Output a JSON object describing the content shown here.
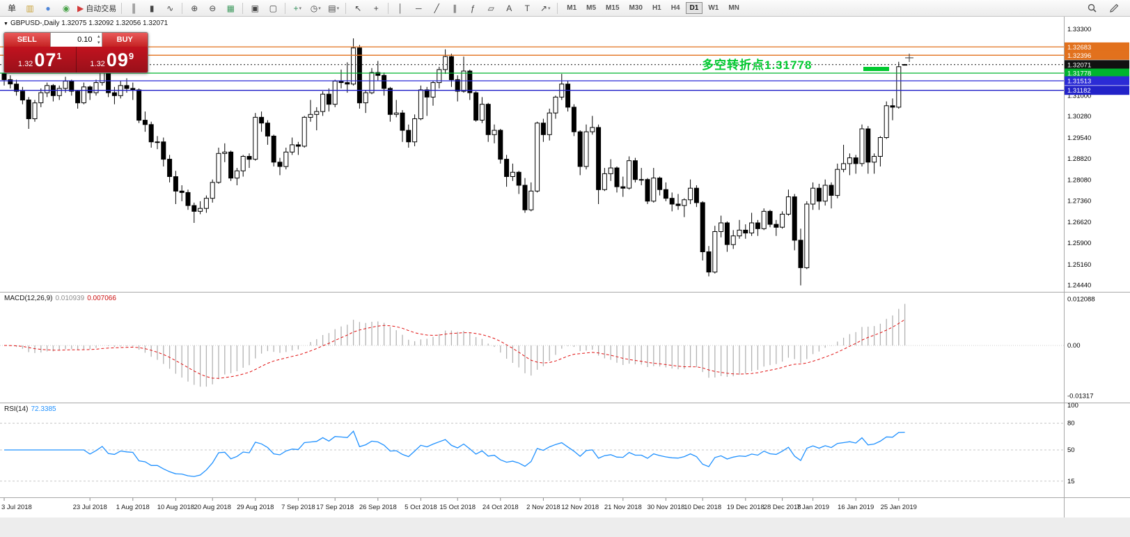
{
  "toolbar": {
    "groups": [
      {
        "name": "trade",
        "items": [
          {
            "n": "new-order-button",
            "g": "单",
            "c": "#333333"
          },
          {
            "n": "new-chart-button",
            "g": "▥",
            "c": "#c8a23a"
          },
          {
            "n": "profiles-button",
            "g": "●",
            "c": "#4f86d8"
          },
          {
            "n": "data-window-button",
            "g": "◉",
            "c": "#4aa34a"
          },
          {
            "n": "auto-trading-button",
            "g": "▶",
            "c": "#d33a3a",
            "label": "自动交易"
          }
        ]
      },
      {
        "name": "chart-type",
        "items": [
          {
            "n": "bar-chart-button",
            "g": "║"
          },
          {
            "n": "candlestick-chart-button",
            "g": "▮"
          },
          {
            "n": "line-chart-button",
            "g": "∿"
          }
        ]
      },
      {
        "name": "zoom",
        "items": [
          {
            "n": "zoom-in-button",
            "g": "⊕"
          },
          {
            "n": "zoom-out-button",
            "g": "⊖"
          },
          {
            "n": "grid-button",
            "g": "▦",
            "c": "#3f9a5f"
          }
        ]
      },
      {
        "name": "windows",
        "items": [
          {
            "n": "tile-windows-button",
            "g": "▣"
          },
          {
            "n": "new-window-button",
            "g": "▢"
          }
        ]
      },
      {
        "name": "insert",
        "items": [
          {
            "n": "add-indicator-button",
            "g": "+",
            "c": "#2e8b57",
            "dd": true
          },
          {
            "n": "period-button",
            "g": "◷",
            "dd": true
          },
          {
            "n": "template-button",
            "g": "▤",
            "dd": true
          }
        ]
      },
      {
        "name": "cursor",
        "items": [
          {
            "n": "cursor-button",
            "g": "↖"
          },
          {
            "n": "crosshair-button",
            "g": "+"
          }
        ]
      },
      {
        "name": "draw",
        "items": [
          {
            "n": "vertical-line-button",
            "g": "│"
          },
          {
            "n": "horizontal-line-button",
            "g": "─"
          },
          {
            "n": "trendline-button",
            "g": "╱"
          },
          {
            "n": "channel-button",
            "g": "∥"
          },
          {
            "n": "fibonacci-button",
            "g": "ƒ"
          },
          {
            "n": "shapes-button",
            "g": "▱"
          },
          {
            "n": "text-button",
            "g": "A"
          },
          {
            "n": "text-label-button",
            "g": "T"
          },
          {
            "n": "arrows-button",
            "g": "↗",
            "dd": true
          }
        ]
      }
    ],
    "timeframes": [
      "M1",
      "M5",
      "M15",
      "M30",
      "H1",
      "H4",
      "D1",
      "W1",
      "MN"
    ],
    "active_timeframe": "D1"
  },
  "one_click": {
    "sell_label": "SELL",
    "buy_label": "BUY",
    "volume": "0.10",
    "sell_price_prefix": "1.32",
    "sell_price_big": "07",
    "sell_price_sup": "1",
    "buy_price_prefix": "1.32",
    "buy_price_big": "09",
    "buy_price_sup": "9"
  },
  "chart": {
    "header": "GBPUSD-,Daily 1.32075 1.32092 1.32056 1.32071",
    "annotation": {
      "text": "多空转折点1.31778",
      "color": "#00c92f"
    },
    "levels": [
      {
        "name": "resistance-1",
        "label": "1.32683",
        "value": 1.32683,
        "color": "#e2711d",
        "style": "solid"
      },
      {
        "name": "resistance-2",
        "label": "1.32396",
        "value": 1.32396,
        "color": "#e2711d",
        "style": "solid"
      },
      {
        "name": "bid-price",
        "label": "1.32071",
        "value": 1.32071,
        "color": "#111111",
        "style": "dotted"
      },
      {
        "name": "pivot-1.31778",
        "label": "1.31778",
        "value": 1.31778,
        "color": "#00b42f",
        "style": "solid"
      },
      {
        "name": "support-1",
        "label": "1.31513",
        "value": 1.31513,
        "color": "#2b2bd6",
        "style": "solid"
      },
      {
        "name": "support-2",
        "label": "1.31182",
        "value": 1.31182,
        "color": "#2222c8",
        "style": "solid"
      }
    ],
    "price_axis": [
      {
        "t": "1.33300",
        "v": 1.333
      },
      {
        "t": "1.31000",
        "v": 1.31
      },
      {
        "t": "1.30280",
        "v": 1.3028
      },
      {
        "t": "1.29540",
        "v": 1.2954
      },
      {
        "t": "1.28820",
        "v": 1.2882
      },
      {
        "t": "1.28080",
        "v": 1.2808
      },
      {
        "t": "1.27360",
        "v": 1.2736
      },
      {
        "t": "1.26620",
        "v": 1.2662
      },
      {
        "t": "1.25900",
        "v": 1.259
      },
      {
        "t": "1.25160",
        "v": 1.2516
      },
      {
        "t": "1.24440",
        "v": 1.2444
      }
    ]
  },
  "macd": {
    "label": "MACD(12,26,9)",
    "main_value": "0.010939",
    "signal_value": "0.007066",
    "params": {
      "fast": 12,
      "slow": 26,
      "signal": 9
    },
    "colors": {
      "histogram": "#b2b2b2",
      "signal": "#e01010"
    },
    "axis": [
      {
        "t": "0.012088",
        "v": 0.012088
      },
      {
        "t": "0.00",
        "v": 0
      },
      {
        "t": "-0.01317",
        "v": -0.01317
      }
    ]
  },
  "rsi": {
    "label": "RSI(14)",
    "value": "72.3385",
    "period": 14,
    "color": "#1e90ff",
    "axis": [
      {
        "t": "100",
        "v": 100
      },
      {
        "t": "80",
        "v": 80
      },
      {
        "t": "50",
        "v": 50
      },
      {
        "t": "15",
        "v": 15
      }
    ],
    "levels": [
      80,
      50,
      15
    ]
  },
  "chart_data": {
    "type": "candlestick",
    "symbol": "GBPUSD",
    "timeframe": "Daily",
    "price_range": [
      1.2424,
      1.3368
    ],
    "ohlc": [
      [
        1.3175,
        1.318,
        1.3135,
        1.3155
      ],
      [
        1.3155,
        1.317,
        1.3125,
        1.314
      ],
      [
        1.314,
        1.3155,
        1.31,
        1.3115
      ],
      [
        1.3115,
        1.313,
        1.307,
        1.3085
      ],
      [
        1.3085,
        1.3095,
        1.2985,
        1.302
      ],
      [
        1.302,
        1.3085,
        1.301,
        1.3075
      ],
      [
        1.3075,
        1.3125,
        1.306,
        1.311
      ],
      [
        1.311,
        1.3145,
        1.3095,
        1.3135
      ],
      [
        1.3135,
        1.314,
        1.308,
        1.31
      ],
      [
        1.31,
        1.3135,
        1.3085,
        1.3125
      ],
      [
        1.3125,
        1.3165,
        1.311,
        1.315
      ],
      [
        1.315,
        1.3155,
        1.31,
        1.3115
      ],
      [
        1.3115,
        1.312,
        1.3055,
        1.3075
      ],
      [
        1.3075,
        1.3145,
        1.307,
        1.313
      ],
      [
        1.313,
        1.3135,
        1.3085,
        1.311
      ],
      [
        1.311,
        1.3155,
        1.31,
        1.3145
      ],
      [
        1.3145,
        1.3215,
        1.3135,
        1.319
      ],
      [
        1.319,
        1.3195,
        1.3095,
        1.311
      ],
      [
        1.311,
        1.313,
        1.307,
        1.31
      ],
      [
        1.31,
        1.315,
        1.309,
        1.3135
      ],
      [
        1.3135,
        1.316,
        1.311,
        1.3125
      ],
      [
        1.3125,
        1.3145,
        1.3085,
        1.312
      ],
      [
        1.312,
        1.3125,
        1.3005,
        1.3015
      ],
      [
        1.3015,
        1.3045,
        1.2975,
        1.3
      ],
      [
        1.3,
        1.301,
        1.292,
        1.294
      ],
      [
        1.294,
        1.296,
        1.2915,
        1.294
      ],
      [
        1.294,
        1.2955,
        1.2855,
        1.288
      ],
      [
        1.288,
        1.2895,
        1.28,
        1.282
      ],
      [
        1.282,
        1.284,
        1.2725,
        1.277
      ],
      [
        1.277,
        1.279,
        1.2735,
        1.2765
      ],
      [
        1.2765,
        1.2775,
        1.2705,
        1.272
      ],
      [
        1.272,
        1.273,
        1.266,
        1.27
      ],
      [
        1.27,
        1.2735,
        1.269,
        1.271
      ],
      [
        1.271,
        1.2755,
        1.2695,
        1.2745
      ],
      [
        1.2745,
        1.281,
        1.273,
        1.28
      ],
      [
        1.28,
        1.292,
        1.2795,
        1.29
      ],
      [
        1.29,
        1.2935,
        1.287,
        1.2905
      ],
      [
        1.2905,
        1.291,
        1.2805,
        1.2815
      ],
      [
        1.2815,
        1.285,
        1.279,
        1.284
      ],
      [
        1.284,
        1.2895,
        1.282,
        1.289
      ],
      [
        1.289,
        1.29,
        1.285,
        1.288
      ],
      [
        1.288,
        1.304,
        1.2875,
        1.3025
      ],
      [
        1.3025,
        1.3045,
        1.2975,
        1.3005
      ],
      [
        1.3005,
        1.3015,
        1.293,
        1.296
      ],
      [
        1.296,
        1.2965,
        1.2855,
        1.287
      ],
      [
        1.287,
        1.2885,
        1.2825,
        1.2855
      ],
      [
        1.2855,
        1.292,
        1.2845,
        1.2905
      ],
      [
        1.2905,
        1.2955,
        1.2895,
        1.293
      ],
      [
        1.293,
        1.294,
        1.2895,
        1.2925
      ],
      [
        1.2925,
        1.303,
        1.292,
        1.3025
      ],
      [
        1.3025,
        1.3085,
        1.301,
        1.3035
      ],
      [
        1.3035,
        1.306,
        1.298,
        1.3045
      ],
      [
        1.3045,
        1.3115,
        1.303,
        1.3105
      ],
      [
        1.3105,
        1.3125,
        1.3045,
        1.307
      ],
      [
        1.307,
        1.3155,
        1.306,
        1.315
      ],
      [
        1.315,
        1.319,
        1.3125,
        1.3145
      ],
      [
        1.3145,
        1.3215,
        1.311,
        1.314
      ],
      [
        1.314,
        1.3298,
        1.3135,
        1.3265
      ],
      [
        1.3265,
        1.3275,
        1.3055,
        1.3075
      ],
      [
        1.3075,
        1.312,
        1.304,
        1.311
      ],
      [
        1.311,
        1.3195,
        1.3105,
        1.318
      ],
      [
        1.318,
        1.322,
        1.315,
        1.317
      ],
      [
        1.317,
        1.318,
        1.31,
        1.3125
      ],
      [
        1.3125,
        1.313,
        1.301,
        1.3035
      ],
      [
        1.3035,
        1.3085,
        1.3025,
        1.304
      ],
      [
        1.304,
        1.305,
        1.294,
        1.298
      ],
      [
        1.298,
        1.3,
        1.292,
        1.294
      ],
      [
        1.294,
        1.3035,
        1.2925,
        1.302
      ],
      [
        1.302,
        1.3135,
        1.3015,
        1.312
      ],
      [
        1.312,
        1.313,
        1.303,
        1.3095
      ],
      [
        1.3095,
        1.315,
        1.3065,
        1.3145
      ],
      [
        1.3145,
        1.32,
        1.3125,
        1.319
      ],
      [
        1.319,
        1.326,
        1.3175,
        1.3235
      ],
      [
        1.3235,
        1.3245,
        1.313,
        1.3155
      ],
      [
        1.3155,
        1.317,
        1.308,
        1.3115
      ],
      [
        1.3115,
        1.3235,
        1.311,
        1.3185
      ],
      [
        1.3185,
        1.319,
        1.3085,
        1.311
      ],
      [
        1.311,
        1.3115,
        1.301,
        1.3015
      ],
      [
        1.3015,
        1.3095,
        1.3005,
        1.307
      ],
      [
        1.307,
        1.3075,
        1.294,
        1.2965
      ],
      [
        1.2965,
        1.3,
        1.2935,
        1.298
      ],
      [
        1.298,
        1.2985,
        1.2865,
        1.288
      ],
      [
        1.288,
        1.2895,
        1.2785,
        1.282
      ],
      [
        1.282,
        1.2865,
        1.2805,
        1.2835
      ],
      [
        1.2835,
        1.284,
        1.276,
        1.279
      ],
      [
        1.279,
        1.2815,
        1.2695,
        1.2705
      ],
      [
        1.2705,
        1.28,
        1.27,
        1.277
      ],
      [
        1.277,
        1.301,
        1.2765,
        1.3005
      ],
      [
        1.3005,
        1.302,
        1.294,
        1.2965
      ],
      [
        1.2965,
        1.3055,
        1.2945,
        1.304
      ],
      [
        1.304,
        1.31,
        1.302,
        1.3095
      ],
      [
        1.3095,
        1.3175,
        1.3085,
        1.314
      ],
      [
        1.314,
        1.315,
        1.3045,
        1.306
      ],
      [
        1.306,
        1.307,
        1.296,
        1.2975
      ],
      [
        1.2975,
        1.298,
        1.2825,
        1.2855
      ],
      [
        1.2855,
        1.3,
        1.2845,
        1.2975
      ],
      [
        1.2975,
        1.303,
        1.2965,
        1.299
      ],
      [
        1.299,
        1.3,
        1.2725,
        1.2775
      ],
      [
        1.2775,
        1.285,
        1.277,
        1.283
      ],
      [
        1.283,
        1.288,
        1.2805,
        1.285
      ],
      [
        1.285,
        1.2855,
        1.2765,
        1.2785
      ],
      [
        1.2785,
        1.282,
        1.275,
        1.278
      ],
      [
        1.278,
        1.289,
        1.2775,
        1.2875
      ],
      [
        1.2875,
        1.2885,
        1.28,
        1.281
      ],
      [
        1.281,
        1.285,
        1.279,
        1.281
      ],
      [
        1.281,
        1.2815,
        1.2725,
        1.2735
      ],
      [
        1.2735,
        1.285,
        1.273,
        1.2815
      ],
      [
        1.2815,
        1.282,
        1.2755,
        1.2775
      ],
      [
        1.2775,
        1.28,
        1.2735,
        1.2745
      ],
      [
        1.2745,
        1.2765,
        1.27,
        1.2725
      ],
      [
        1.2725,
        1.276,
        1.2705,
        1.272
      ],
      [
        1.272,
        1.2745,
        1.268,
        1.274
      ],
      [
        1.274,
        1.281,
        1.2725,
        1.278
      ],
      [
        1.278,
        1.279,
        1.2715,
        1.273
      ],
      [
        1.273,
        1.2735,
        1.253,
        1.256
      ],
      [
        1.256,
        1.258,
        1.2475,
        1.249
      ],
      [
        1.249,
        1.265,
        1.2485,
        1.263
      ],
      [
        1.263,
        1.2685,
        1.261,
        1.266
      ],
      [
        1.266,
        1.2665,
        1.256,
        1.2585
      ],
      [
        1.2585,
        1.2635,
        1.257,
        1.2615
      ],
      [
        1.2615,
        1.267,
        1.2605,
        1.2635
      ],
      [
        1.2635,
        1.2655,
        1.2605,
        1.2625
      ],
      [
        1.2625,
        1.2695,
        1.2615,
        1.266
      ],
      [
        1.266,
        1.267,
        1.2615,
        1.264
      ],
      [
        1.264,
        1.271,
        1.2635,
        1.27
      ],
      [
        1.27,
        1.2705,
        1.2645,
        1.2655
      ],
      [
        1.2655,
        1.267,
        1.2615,
        1.2645
      ],
      [
        1.2645,
        1.27,
        1.264,
        1.269
      ],
      [
        1.269,
        1.2775,
        1.2685,
        1.275
      ],
      [
        1.275,
        1.276,
        1.2565,
        1.26
      ],
      [
        1.26,
        1.264,
        1.2444,
        1.2505
      ],
      [
        1.2505,
        1.2735,
        1.25,
        1.2725
      ],
      [
        1.2725,
        1.28,
        1.2705,
        1.278
      ],
      [
        1.278,
        1.2795,
        1.2705,
        1.2735
      ],
      [
        1.2735,
        1.281,
        1.272,
        1.279
      ],
      [
        1.279,
        1.28,
        1.271,
        1.2755
      ],
      [
        1.2755,
        1.2865,
        1.2745,
        1.2845
      ],
      [
        1.2845,
        1.293,
        1.2835,
        1.2865
      ],
      [
        1.2865,
        1.29,
        1.2825,
        1.2885
      ],
      [
        1.2885,
        1.2895,
        1.283,
        1.2865
      ],
      [
        1.2865,
        1.3,
        1.2855,
        1.2985
      ],
      [
        1.2985,
        1.2995,
        1.283,
        1.287
      ],
      [
        1.287,
        1.29,
        1.283,
        1.289
      ],
      [
        1.289,
        1.296,
        1.2855,
        1.2955
      ],
      [
        1.2955,
        1.308,
        1.295,
        1.3065
      ],
      [
        1.3065,
        1.309,
        1.3015,
        1.306
      ],
      [
        1.306,
        1.3217,
        1.3055,
        1.32
      ],
      [
        1.32075,
        1.32092,
        1.32056,
        1.32071
      ]
    ],
    "date_labels": [
      {
        "t": "3 Jul 2018",
        "i": 0
      },
      {
        "t": "23 Jul 2018",
        "i": 14
      },
      {
        "t": "1 Aug 2018",
        "i": 21
      },
      {
        "t": "10 Aug 2018",
        "i": 28
      },
      {
        "t": "20 Aug 2018",
        "i": 34
      },
      {
        "t": "29 Aug 2018",
        "i": 41
      },
      {
        "t": "7 Sep 2018",
        "i": 48
      },
      {
        "t": "17 Sep 2018",
        "i": 54
      },
      {
        "t": "26 Sep 2018",
        "i": 61
      },
      {
        "t": "5 Oct 2018",
        "i": 68
      },
      {
        "t": "15 Oct 2018",
        "i": 74
      },
      {
        "t": "24 Oct 2018",
        "i": 81
      },
      {
        "t": "2 Nov 2018",
        "i": 88
      },
      {
        "t": "12 Nov 2018",
        "i": 94
      },
      {
        "t": "21 Nov 2018",
        "i": 101
      },
      {
        "t": "30 Nov 2018",
        "i": 108
      },
      {
        "t": "10 Dec 2018",
        "i": 114
      },
      {
        "t": "19 Dec 2018",
        "i": 121
      },
      {
        "t": "28 Dec 2018",
        "i": 127
      },
      {
        "t": "7 Jan 2019",
        "i": 132
      },
      {
        "t": "16 Jan 2019",
        "i": 139
      },
      {
        "t": "25 Jan 2019",
        "i": 146
      }
    ]
  }
}
